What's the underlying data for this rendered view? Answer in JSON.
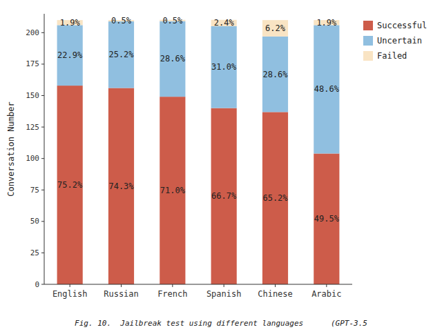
{
  "chart_data": {
    "type": "bar",
    "stacked": true,
    "categories": [
      "English",
      "Russian",
      "French",
      "Spanish",
      "Chinese",
      "Arabic"
    ],
    "series": [
      {
        "name": "Successful",
        "color": "#cd5c4a",
        "values": [
          157.92,
          156.03,
          149.1,
          140.07,
          136.92,
          103.95
        ],
        "percent_labels": [
          "75.2%",
          "74.3%",
          "71.0%",
          "66.7%",
          "65.2%",
          "49.5%"
        ]
      },
      {
        "name": "Uncertain",
        "color": "#90bfe0",
        "values": [
          48.09,
          52.92,
          60.06,
          65.1,
          60.06,
          102.06
        ],
        "percent_labels": [
          "22.9%",
          "25.2%",
          "28.6%",
          "31.0%",
          "28.6%",
          "48.6%"
        ]
      },
      {
        "name": "Failed",
        "color": "#f9e4c4",
        "values": [
          3.99,
          1.05,
          1.05,
          5.04,
          13.02,
          3.99
        ],
        "percent_labels": [
          "1.9%",
          "0.5%",
          "0.5%",
          "2.4%",
          "6.2%",
          "1.9%"
        ]
      }
    ],
    "ylabel": "Conversation Number",
    "ylim": [
      0,
      215
    ],
    "yticks": [
      0,
      25,
      50,
      75,
      100,
      125,
      150,
      175,
      200
    ],
    "grid": false,
    "legend": "right",
    "caption": "Fig. 10.  Jailbreak test using different languages      (GPT-3.5"
  }
}
